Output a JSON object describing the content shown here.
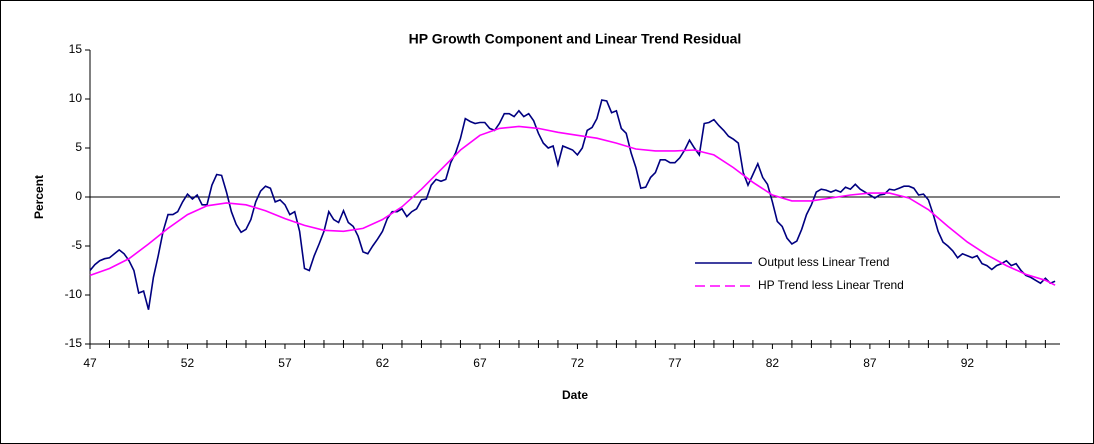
{
  "chart_data": {
    "type": "line",
    "title": "HP Growth Component and Linear Trend Residual",
    "x_label": "Date",
    "y_label": "Percent",
    "xlim": [
      47,
      96.75
    ],
    "xticks": [
      47,
      52,
      57,
      62,
      67,
      72,
      77,
      82,
      87,
      92
    ],
    "minor_xticks": [
      48,
      49,
      50,
      51,
      53,
      54,
      55,
      56,
      58,
      59,
      60,
      61,
      63,
      64,
      65,
      66,
      68,
      69,
      70,
      71,
      73,
      74,
      75,
      76,
      78,
      79,
      80,
      81,
      83,
      84,
      85,
      86,
      88,
      89,
      90,
      91,
      93,
      94,
      95,
      96
    ],
    "ylim": [
      -15,
      15
    ],
    "yticks": [
      -15,
      -10,
      -5,
      0,
      5,
      10,
      15
    ],
    "series": [
      {
        "name": "Output less Linear Trend",
        "color": "#000080",
        "x": [
          47,
          47.25,
          47.5,
          47.75,
          48,
          48.25,
          48.5,
          48.75,
          49,
          49.25,
          49.5,
          49.75,
          50,
          50.25,
          50.5,
          50.75,
          51,
          51.25,
          51.5,
          51.75,
          52,
          52.25,
          52.5,
          52.75,
          53,
          53.25,
          53.5,
          53.75,
          54,
          54.25,
          54.5,
          54.75,
          55,
          55.25,
          55.5,
          55.75,
          56,
          56.25,
          56.5,
          56.75,
          57,
          57.25,
          57.5,
          57.75,
          58,
          58.25,
          58.5,
          58.75,
          59,
          59.25,
          59.5,
          59.75,
          60,
          60.25,
          60.5,
          60.75,
          61,
          61.25,
          61.5,
          61.75,
          62,
          62.25,
          62.5,
          62.75,
          63,
          63.25,
          63.5,
          63.75,
          64,
          64.25,
          64.5,
          64.75,
          65,
          65.25,
          65.5,
          65.75,
          66,
          66.25,
          66.5,
          66.75,
          67,
          67.25,
          67.5,
          67.75,
          68,
          68.25,
          68.5,
          68.75,
          69,
          69.25,
          69.5,
          69.75,
          70,
          70.25,
          70.5,
          70.75,
          71,
          71.25,
          71.5,
          71.75,
          72,
          72.25,
          72.5,
          72.75,
          73,
          73.25,
          73.5,
          73.75,
          74,
          74.25,
          74.5,
          74.75,
          75,
          75.25,
          75.5,
          75.75,
          76,
          76.25,
          76.5,
          76.75,
          77,
          77.25,
          77.5,
          77.75,
          78,
          78.25,
          78.5,
          78.75,
          79,
          79.25,
          79.5,
          79.75,
          80,
          80.25,
          80.5,
          80.75,
          81,
          81.25,
          81.5,
          81.75,
          82,
          82.25,
          82.5,
          82.75,
          83,
          83.25,
          83.5,
          83.75,
          84,
          84.25,
          84.5,
          84.75,
          85,
          85.25,
          85.5,
          85.75,
          86,
          86.25,
          86.5,
          86.75,
          87,
          87.25,
          87.5,
          87.75,
          88,
          88.25,
          88.5,
          88.75,
          89,
          89.25,
          89.5,
          89.75,
          90,
          90.25,
          90.5,
          90.75,
          91,
          91.25,
          91.5,
          91.75,
          92,
          92.25,
          92.5,
          92.75,
          93,
          93.25,
          93.5,
          93.75,
          94,
          94.25,
          94.5,
          94.75,
          95,
          95.25,
          95.5,
          95.75,
          96,
          96.25,
          96.5
        ],
        "values": [
          -7.5,
          -6.9,
          -6.5,
          -6.3,
          -6.2,
          -5.8,
          -5.4,
          -5.8,
          -6.5,
          -7.5,
          -9.8,
          -9.6,
          -11.5,
          -8.2,
          -6,
          -3.5,
          -1.8,
          -1.8,
          -1.5,
          -0.5,
          0.3,
          -0.2,
          0.2,
          -0.8,
          -0.8,
          1.2,
          2.3,
          2.2,
          0.5,
          -1.5,
          -2.8,
          -3.6,
          -3.3,
          -2.3,
          -0.5,
          0.6,
          1.1,
          0.9,
          -0.5,
          -0.3,
          -0.8,
          -1.8,
          -1.5,
          -3.5,
          -7.3,
          -7.5,
          -6,
          -4.8,
          -3.5,
          -1.5,
          -2.3,
          -2.6,
          -1.4,
          -2.6,
          -3,
          -4,
          -5.6,
          -5.8,
          -5,
          -4.3,
          -3.5,
          -2.2,
          -1.5,
          -1.5,
          -1.2,
          -2,
          -1.5,
          -1.2,
          -0.3,
          -0.2,
          1.2,
          1.8,
          1.6,
          1.8,
          3.5,
          4.5,
          6,
          8,
          7.7,
          7.5,
          7.6,
          7.6,
          7,
          6.8,
          7.5,
          8.5,
          8.5,
          8.2,
          8.8,
          8.2,
          8.5,
          7.8,
          6.5,
          5.5,
          5,
          5.2,
          3.3,
          5.2,
          5,
          4.8,
          4.3,
          5,
          6.8,
          7.1,
          8,
          9.9,
          9.8,
          8.6,
          8.8,
          7,
          6.5,
          4.5,
          3,
          0.9,
          1,
          2,
          2.5,
          3.8,
          3.8,
          3.5,
          3.5,
          4,
          4.8,
          5.8,
          5,
          4.3,
          7.5,
          7.6,
          7.9,
          7.3,
          6.8,
          6.2,
          5.9,
          5.5,
          2.5,
          1.2,
          2.3,
          3.4,
          2,
          1.3,
          -0.5,
          -2.5,
          -3,
          -4.2,
          -4.8,
          -4.5,
          -3.3,
          -1.8,
          -0.8,
          0.5,
          0.8,
          0.7,
          0.5,
          0.7,
          0.5,
          1,
          0.8,
          1.3,
          0.8,
          0.5,
          0.2,
          -0.1,
          0.2,
          0.3,
          0.8,
          0.7,
          0.9,
          1.1,
          1.1,
          0.9,
          0.2,
          0.3,
          -0.3,
          -1.8,
          -3.5,
          -4.6,
          -5,
          -5.5,
          -6.2,
          -5.8,
          -6,
          -6.2,
          -6,
          -6.8,
          -7,
          -7.4,
          -7,
          -6.8,
          -6.5,
          -7,
          -6.8,
          -7.5,
          -8,
          -8.2,
          -8.5,
          -8.8,
          -8.3,
          -8.8,
          -8.6
        ]
      },
      {
        "name": "HP Trend less Linear Trend",
        "color": "#ff00ff",
        "x": [
          47,
          48,
          49,
          50,
          51,
          52,
          53,
          54,
          55,
          56,
          57,
          58,
          59,
          60,
          61,
          62,
          63,
          64,
          65,
          66,
          67,
          68,
          69,
          70,
          71,
          72,
          73,
          74,
          75,
          76,
          77,
          78,
          79,
          80,
          81,
          82,
          83,
          84,
          85,
          86,
          87,
          88,
          89,
          90,
          91,
          92,
          93,
          94,
          95,
          96,
          96.5
        ],
        "values": [
          -8,
          -7.3,
          -6.3,
          -4.8,
          -3.2,
          -1.8,
          -0.9,
          -0.6,
          -0.8,
          -1.4,
          -2.2,
          -2.9,
          -3.4,
          -3.5,
          -3.2,
          -2.3,
          -1,
          0.8,
          2.8,
          4.8,
          6.3,
          7,
          7.2,
          7,
          6.6,
          6.3,
          6,
          5.5,
          4.9,
          4.7,
          4.7,
          4.8,
          4.3,
          3,
          1.5,
          0.2,
          -0.4,
          -0.4,
          -0.1,
          0.2,
          0.4,
          0.4,
          -0.1,
          -1.3,
          -3,
          -4.6,
          -5.9,
          -7,
          -7.9,
          -8.5,
          -9
        ]
      }
    ]
  }
}
